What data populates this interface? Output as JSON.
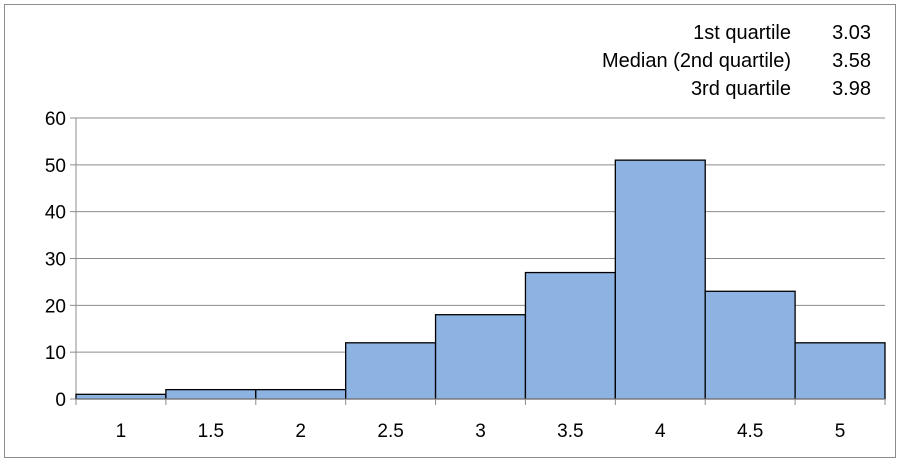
{
  "chart_data": {
    "type": "bar",
    "categories": [
      "1",
      "1.5",
      "2",
      "2.5",
      "3",
      "3.5",
      "4",
      "4.5",
      "5"
    ],
    "values": [
      1,
      2,
      2,
      12,
      18,
      27,
      51,
      23,
      12
    ],
    "title": "",
    "xlabel": "",
    "ylabel": "",
    "ylim": [
      0,
      60
    ],
    "yticks": [
      "0",
      "10",
      "20",
      "30",
      "40",
      "50",
      "60"
    ],
    "grid": true,
    "bar_color": "#8db3e2",
    "bar_edge_color": "#000000",
    "annotations": [
      {
        "label": "1st quartile",
        "value": "3.03"
      },
      {
        "label": "Median (2nd quartile)",
        "value": "3.58"
      },
      {
        "label": "3rd quartile",
        "value": "3.98"
      }
    ]
  }
}
